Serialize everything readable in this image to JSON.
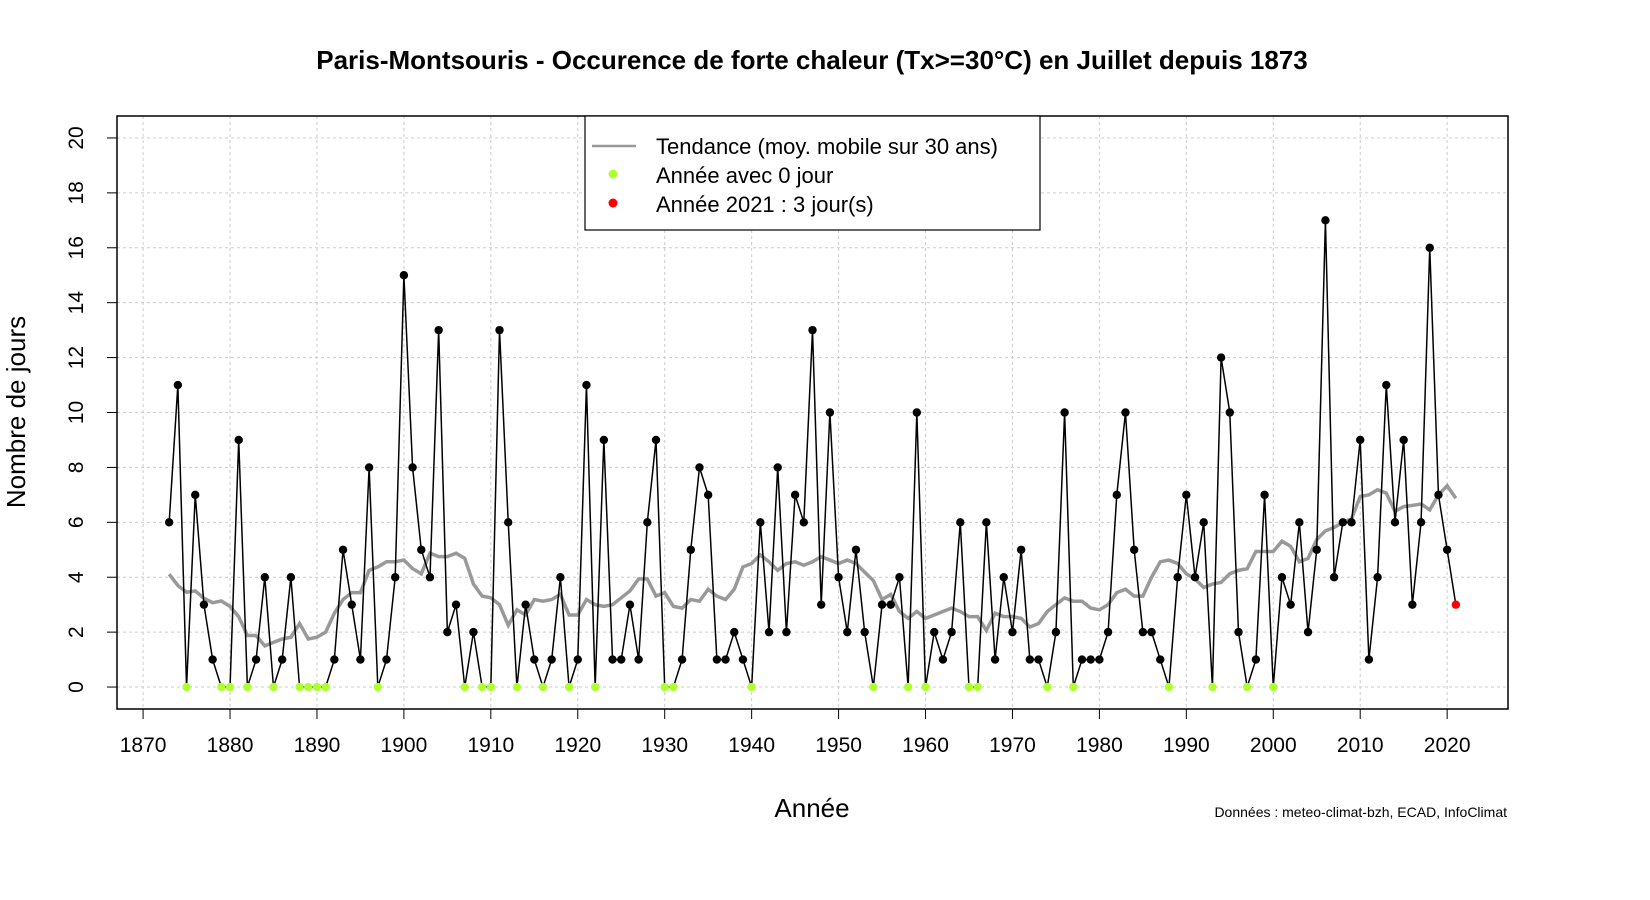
{
  "chart_data": {
    "type": "line",
    "title": "Paris-Montsouris - Occurence de forte chaleur (Tx>=30°C) en Juillet depuis 1873",
    "xlabel": "Année",
    "ylabel": "Nombre de jours",
    "source": "Données : meteo-climat-bzh, ECAD, InfoClimat",
    "xlim": [
      1867,
      2027
    ],
    "ylim": [
      -0.8,
      20.8
    ],
    "xticks": [
      1870,
      1880,
      1890,
      1900,
      1910,
      1920,
      1930,
      1940,
      1950,
      1960,
      1970,
      1980,
      1990,
      2000,
      2010,
      2020
    ],
    "yticks": [
      0,
      2,
      4,
      6,
      8,
      10,
      12,
      14,
      16,
      18,
      20
    ],
    "grid": true,
    "legend_position": "top-center",
    "legend": [
      {
        "label": "Tendance (moy. mobile sur 30 ans)",
        "kind": "line",
        "color": "#999999"
      },
      {
        "label": "Année avec 0 jour",
        "kind": "point",
        "color": "#adff2f"
      },
      {
        "label": "Année 2021 : 3 jour(s)",
        "kind": "point",
        "color": "#ff0000"
      }
    ],
    "colors": {
      "series": "#000000",
      "zero": "#adff2f",
      "highlight": "#ff0000",
      "trend": "#999999",
      "grid": "#cccccc"
    },
    "trend_window": 30,
    "highlight_year": 2021,
    "start_year": 1873,
    "values": [
      6,
      11,
      0,
      7,
      3,
      1,
      0,
      0,
      9,
      0,
      1,
      4,
      0,
      1,
      4,
      0,
      0,
      0,
      0,
      1,
      5,
      3,
      1,
      8,
      0,
      1,
      4,
      15,
      8,
      5,
      4,
      13,
      2,
      3,
      0,
      2,
      0,
      0,
      13,
      6,
      0,
      3,
      1,
      0,
      1,
      4,
      0,
      1,
      11,
      0,
      9,
      1,
      1,
      3,
      1,
      6,
      9,
      0,
      0,
      1,
      5,
      8,
      7,
      1,
      1,
      2,
      1,
      0,
      6,
      2,
      8,
      2,
      7,
      6,
      13,
      3,
      10,
      4,
      2,
      5,
      2,
      0,
      3,
      3,
      4,
      0,
      10,
      0,
      2,
      1,
      2,
      6,
      0,
      0,
      6,
      1,
      4,
      2,
      5,
      1,
      1,
      0,
      2,
      10,
      0,
      1,
      1,
      1,
      2,
      7,
      10,
      5,
      2,
      2,
      1,
      0,
      4,
      7,
      4,
      6,
      0,
      12,
      10,
      2,
      0,
      1,
      7,
      0,
      4,
      3,
      6,
      2,
      5,
      17,
      4,
      6,
      6,
      9,
      1,
      4,
      11,
      6,
      9,
      3,
      6,
      16,
      7,
      5,
      3
    ]
  }
}
